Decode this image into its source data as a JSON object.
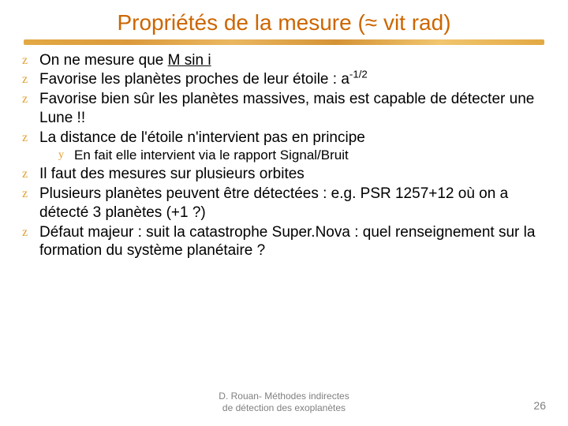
{
  "title": "Propriétés de la mesure (≈ vit rad)",
  "bullets": [
    {
      "html": "On ne mesure que <span class='underline-text'>M sin i</span>"
    },
    {
      "html": "Favorise les planètes proches de leur étoile : a<sup>-1/2</sup>"
    },
    {
      "html": "Favorise bien sûr les planètes massives, mais est capable de détecter une Lune !!"
    },
    {
      "html": "La distance de l'étoile n'intervient pas  en principe",
      "sub": [
        {
          "html": "En fait elle intervient via le rapport Signal/Bruit"
        }
      ]
    },
    {
      "html": "Il faut des mesures sur plusieurs orbites"
    },
    {
      "html": "Plusieurs planètes peuvent être détectées : e.g. PSR 1257+12  où on a détecté 3 planètes (+1 ?)"
    },
    {
      "html": "Défaut majeur : suit la catastrophe Super.Nova  : quel renseignement sur la formation du système planétaire ?"
    }
  ],
  "footer_line1": "D. Rouan-  Méthodes indirectes",
  "footer_line2": "de détection des exoplanètes",
  "page_number": "26",
  "colors": {
    "title": "#cc6600",
    "bullet_marker": "#e0a030",
    "text": "#000000",
    "footer": "#808080",
    "background": "#ffffff"
  }
}
